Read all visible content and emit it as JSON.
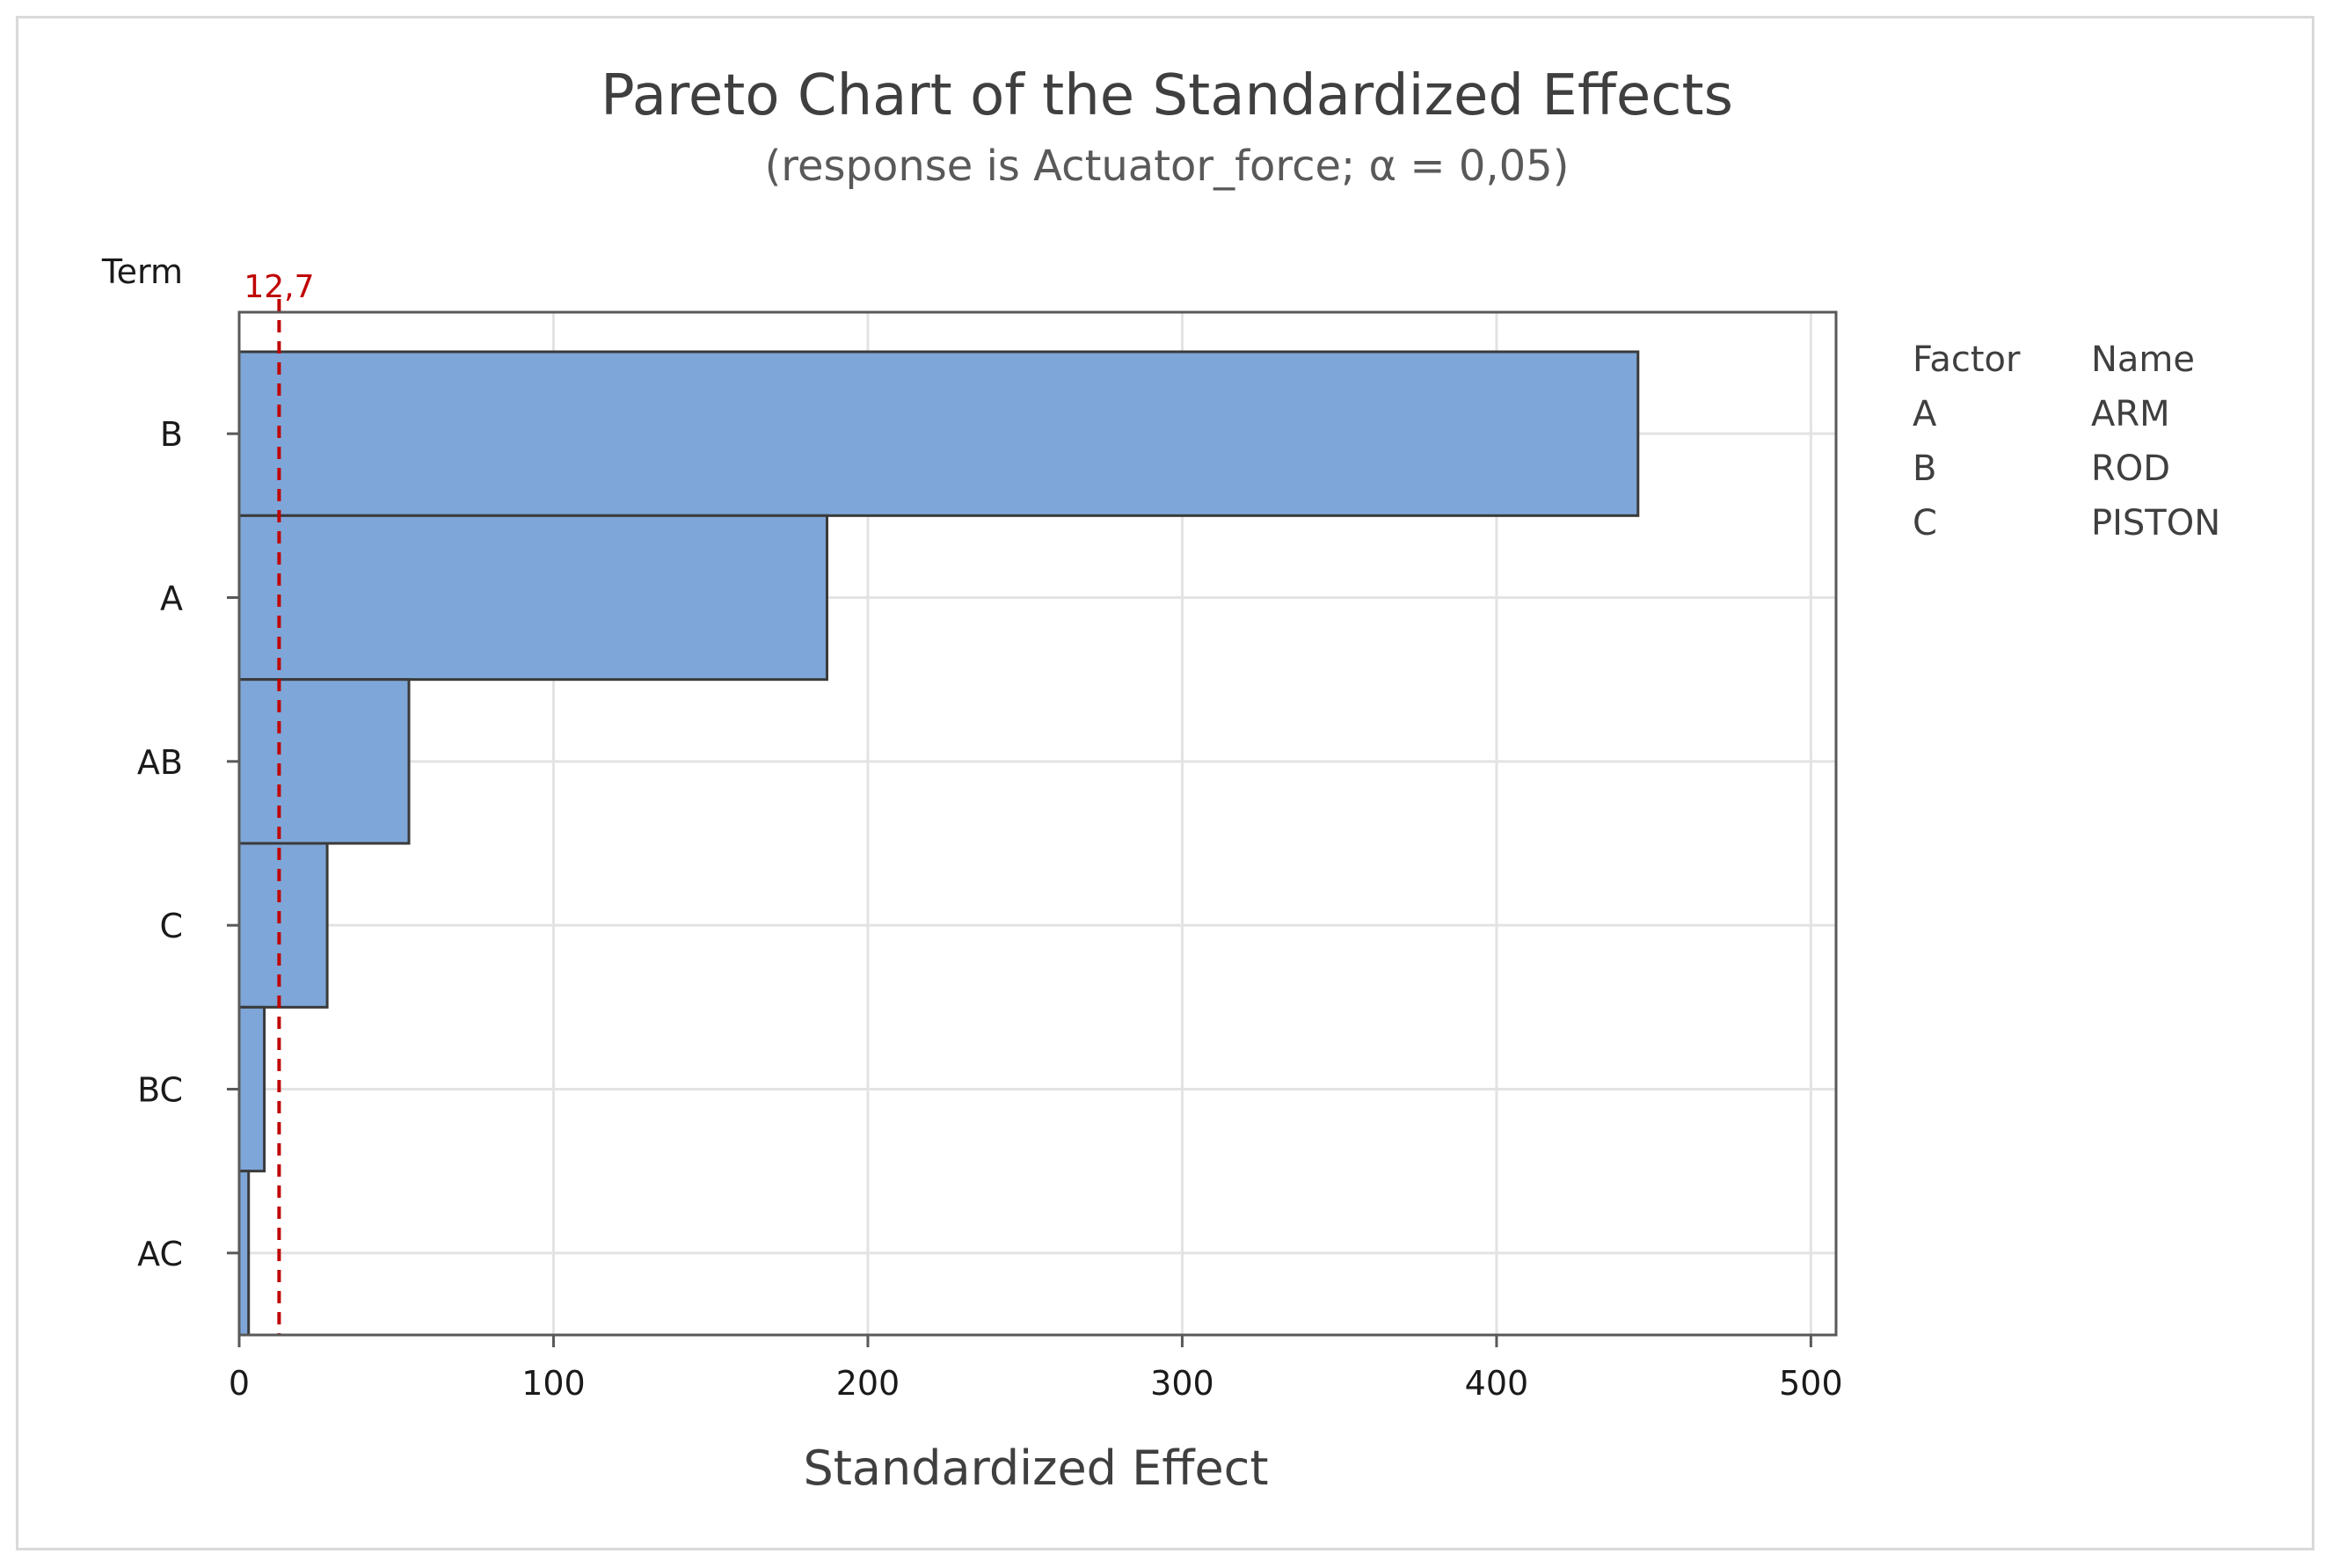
{
  "chart_data": {
    "type": "bar",
    "orientation": "horizontal",
    "title": "Pareto Chart of the Standardized Effects",
    "subtitle": "(response is Actuator_force; α = 0,05)",
    "xlabel": "Standardized Effect",
    "ylabel": "Term",
    "categories": [
      "B",
      "A",
      "AB",
      "C",
      "BC",
      "AC"
    ],
    "values": [
      445,
      187,
      54,
      28,
      8,
      3
    ],
    "xlim": [
      0,
      508
    ],
    "xticks": [
      0,
      100,
      200,
      300,
      400,
      500
    ],
    "grid": true,
    "reference_line": {
      "value": 12.7,
      "label": "12,7",
      "style": "dashed"
    },
    "colors": {
      "bar": "#7ea6d8",
      "bar_edge": "#3a3a3a",
      "reference": "#c00000",
      "grid": "#e3e3e3",
      "axis": "#595959"
    },
    "legend": {
      "headers": [
        "Factor",
        "Name"
      ],
      "rows": [
        [
          "A",
          "ARM"
        ],
        [
          "B",
          "ROD"
        ],
        [
          "C",
          "PISTON"
        ]
      ],
      "placement": "right"
    }
  }
}
